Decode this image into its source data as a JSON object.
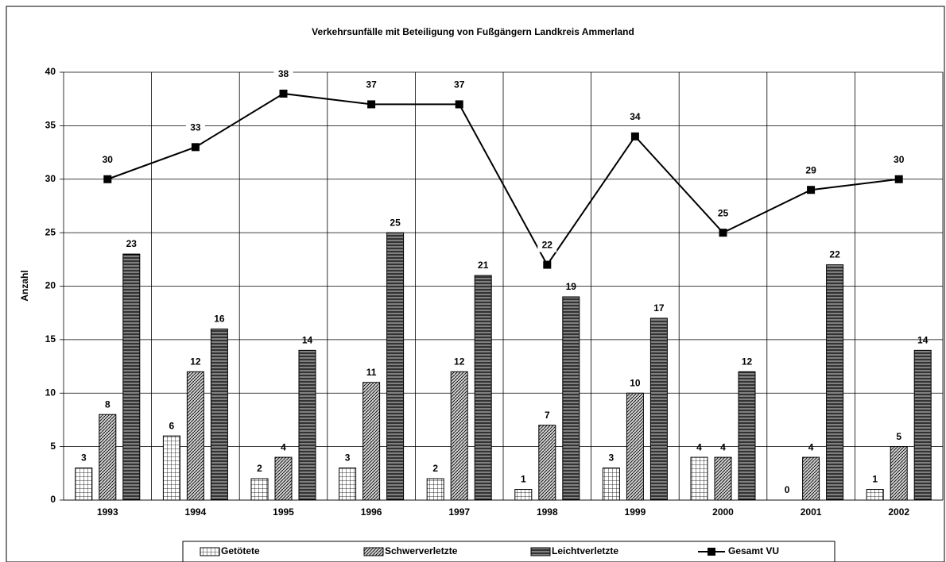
{
  "chart_data": {
    "type": "bar",
    "title": "Verkehrsunfälle mit Beteiligung von Fußgängern Landkreis Ammerland",
    "y_label": "Anzahl",
    "categories": [
      "1993",
      "1994",
      "1995",
      "1996",
      "1997",
      "1998",
      "1999",
      "2000",
      "2001",
      "2002"
    ],
    "series": [
      {
        "name": "Getötete",
        "color": "#ffffff",
        "values": [
          3,
          6,
          2,
          3,
          2,
          1,
          3,
          4,
          0,
          1
        ]
      },
      {
        "name": "Schwerverletzte",
        "color": "#d0d0d0",
        "values": [
          8,
          12,
          4,
          11,
          12,
          7,
          10,
          4,
          4,
          5
        ]
      },
      {
        "name": "Leichtverletzte",
        "color": "#808080",
        "values": [
          23,
          16,
          14,
          25,
          21,
          19,
          17,
          12,
          22,
          14
        ]
      },
      {
        "name": "Gesamt VU",
        "type": "line",
        "color": "#000000",
        "values": [
          30,
          33,
          38,
          37,
          37,
          22,
          34,
          25,
          29,
          30
        ]
      }
    ],
    "ylim": [
      0,
      40
    ],
    "yticks": [
      0,
      5,
      10,
      15,
      20,
      25,
      30,
      35,
      40
    ],
    "grid": true,
    "legend": "bottom"
  }
}
